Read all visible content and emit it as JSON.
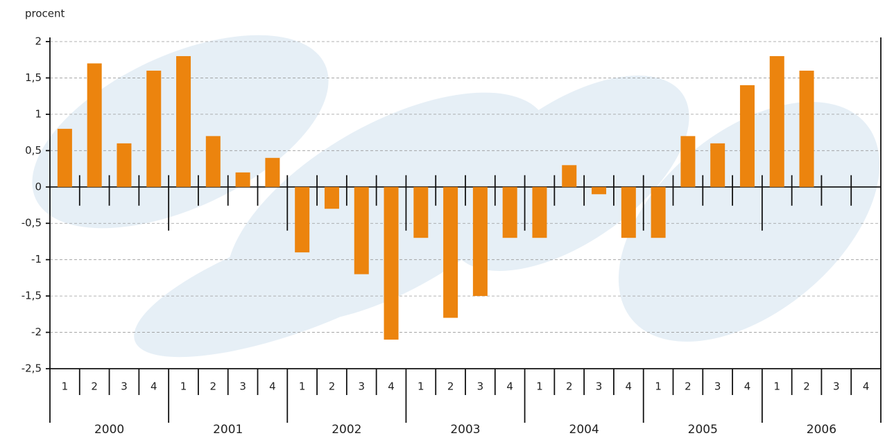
{
  "chart_data": {
    "type": "bar",
    "y_label": "procent",
    "categories": [
      "1",
      "2",
      "3",
      "4",
      "1",
      "2",
      "3",
      "4",
      "1",
      "2",
      "3",
      "4",
      "1",
      "2",
      "3",
      "4",
      "1",
      "2",
      "3",
      "4",
      "1",
      "2",
      "3",
      "4",
      "1",
      "2",
      "3",
      "4"
    ],
    "years": [
      "2000",
      "2001",
      "2002",
      "2003",
      "2004",
      "2005",
      "2006"
    ],
    "values": [
      0.8,
      1.7,
      0.6,
      1.6,
      1.8,
      0.7,
      0.2,
      0.4,
      -0.9,
      -0.3,
      -1.2,
      -2.1,
      -0.7,
      -1.8,
      -1.5,
      -0.7,
      -0.7,
      0.3,
      -0.1,
      -0.7,
      -0.7,
      0.7,
      0.6,
      1.4,
      1.8,
      1.6,
      null,
      null
    ],
    "color": "#ec840e",
    "ylim": [
      -2.5,
      2
    ],
    "yticks": [
      {
        "value": -2.5,
        "label": "-2,5"
      },
      -2,
      {
        "value": -1.5,
        "label": "-1,5"
      },
      -1,
      {
        "value": -0.5,
        "label": "-0,5"
      },
      0,
      {
        "value": 0.5,
        "label": "0,5"
      },
      1,
      {
        "value": 1.5,
        "label": "1,5"
      },
      2
    ],
    "grid": true
  }
}
